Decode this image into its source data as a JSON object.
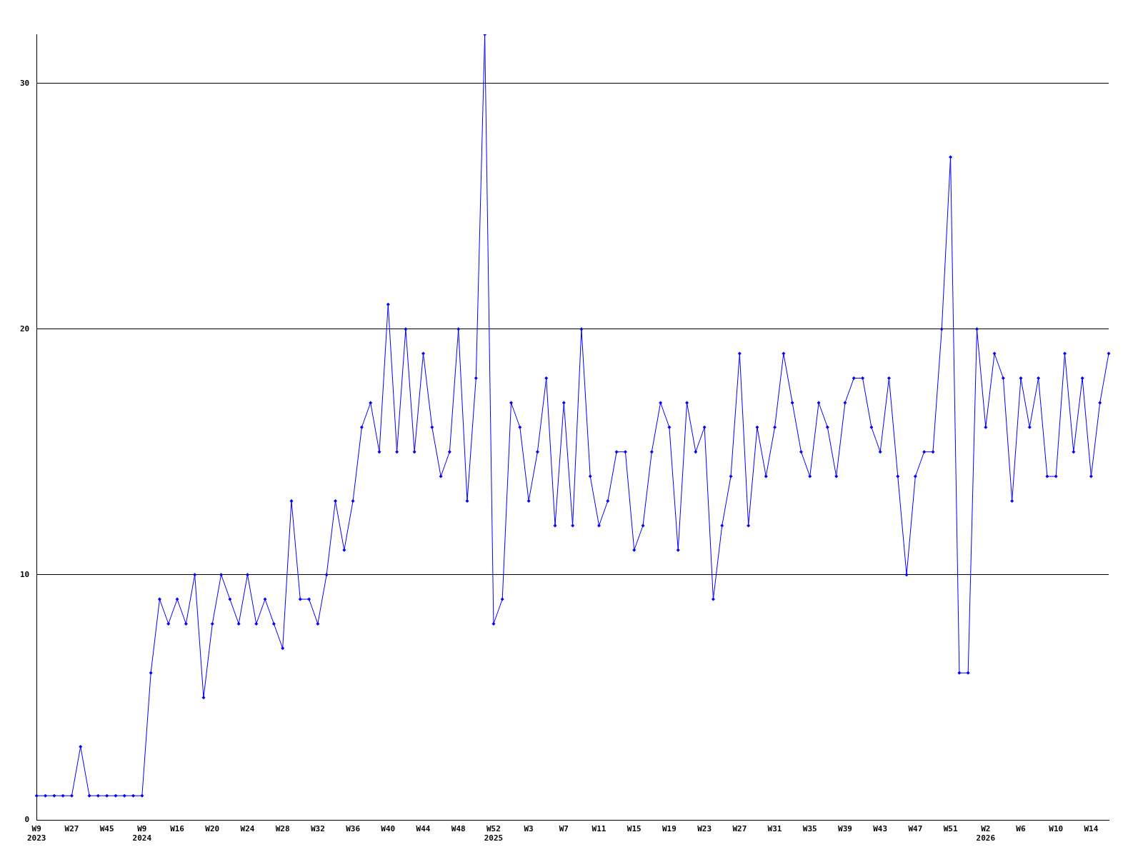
{
  "chart_data": {
    "type": "line",
    "categories": [
      "W9\n2023",
      null,
      null,
      null,
      "W27",
      null,
      null,
      null,
      "W45",
      null,
      null,
      null,
      "W9\n2024",
      null,
      null,
      null,
      "W16",
      null,
      null,
      null,
      "W20",
      null,
      null,
      null,
      "W24",
      null,
      null,
      null,
      "W28",
      null,
      null,
      null,
      "W32",
      null,
      null,
      null,
      "W36",
      null,
      null,
      null,
      "W40",
      null,
      null,
      null,
      "W44",
      null,
      null,
      null,
      "W48",
      null,
      null,
      null,
      "W52\n2025",
      null,
      null,
      null,
      "W3",
      null,
      null,
      null,
      "W7",
      null,
      null,
      null,
      "W11",
      null,
      null,
      null,
      "W15",
      null,
      null,
      null,
      "W19",
      null,
      null,
      null,
      "W23",
      null,
      null,
      null,
      "W27",
      null,
      null,
      null,
      "W31",
      null,
      null,
      null,
      "W35",
      null,
      null,
      null,
      "W39",
      null,
      null,
      null,
      "W43",
      null,
      null,
      null,
      "W47",
      null,
      null,
      null,
      "W51",
      null,
      null,
      null,
      "W2\n2026",
      null,
      null,
      null,
      "W6",
      null,
      null,
      null,
      "W10",
      null,
      null,
      null,
      "W14",
      null,
      null
    ],
    "series": [
      {
        "color": "#0000ff",
        "values": [
          1,
          1,
          1,
          1,
          1,
          3,
          1,
          1,
          1,
          1,
          1,
          1,
          1,
          6,
          9,
          8,
          9,
          8,
          10,
          5,
          8,
          10,
          9,
          8,
          10,
          8,
          9,
          8,
          7,
          13,
          9,
          9,
          8,
          10,
          13,
          11,
          13,
          16,
          17,
          15,
          21,
          15,
          20,
          15,
          19,
          16,
          14,
          15,
          20,
          13,
          18,
          32,
          8,
          9,
          17,
          16,
          13,
          15,
          18,
          12,
          17,
          12,
          20,
          14,
          12,
          13,
          15,
          15,
          11,
          12,
          15,
          17,
          16,
          11,
          17,
          15,
          16,
          9,
          12,
          14,
          19,
          12,
          16,
          14,
          16,
          19,
          17,
          15,
          14,
          17,
          16,
          14,
          17,
          18,
          18,
          16,
          15,
          18,
          14,
          10,
          14,
          15,
          15,
          20,
          27,
          6,
          6,
          20,
          16,
          19,
          18,
          13,
          18,
          16,
          18,
          14,
          14,
          19,
          15,
          18,
          14,
          17,
          19
        ]
      }
    ],
    "ylim": [
      0,
      32
    ],
    "yticks": [
      0,
      10,
      20,
      30
    ],
    "grid": "y",
    "marker": "diamond"
  }
}
